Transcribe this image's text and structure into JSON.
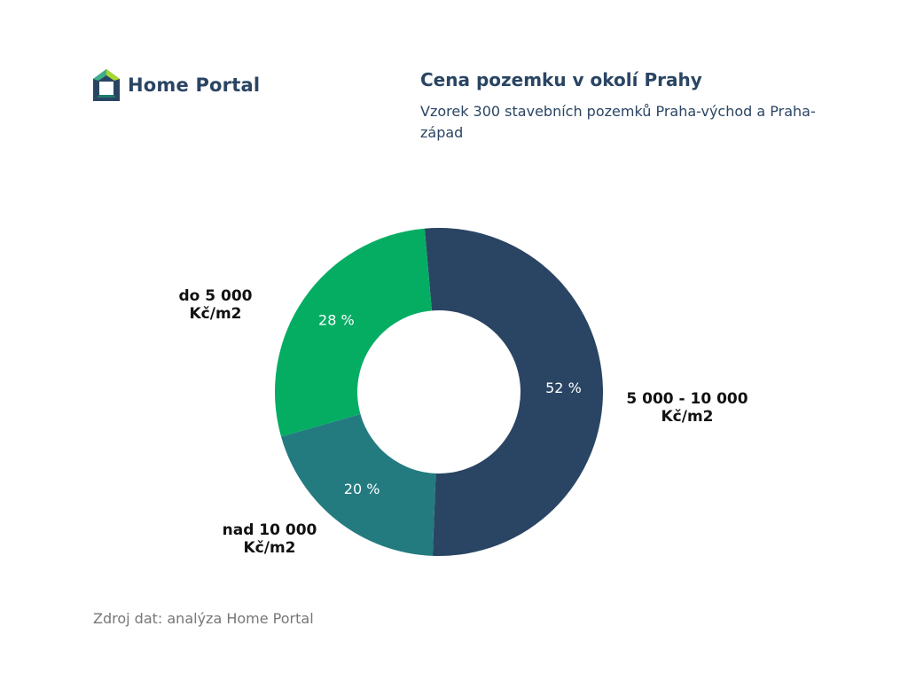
{
  "brand": {
    "name": "Home Portal",
    "logo_icon": "house-icon",
    "colors": [
      "#2a4563",
      "#3fae8a",
      "#a7d82d",
      "#1f7a6c"
    ]
  },
  "chart_data": {
    "type": "pie",
    "title": "Cena pozemku v okolí Prahy",
    "subtitle": "Vzorek 300 stavebních pozemků Praha-východ a Praha-západ",
    "slices": [
      {
        "category_line1": "5 000 - 10 000",
        "category_line2": "Kč/m2",
        "value": 52,
        "value_label": "52 %",
        "color": "#2a4563"
      },
      {
        "category_line1": "nad 10 000",
        "category_line2": "Kč/m2",
        "value": 20,
        "value_label": "20 %",
        "color": "#237b80"
      },
      {
        "category_line1": "do 5 000",
        "category_line2": "Kč/m2",
        "value": 28,
        "value_label": "28 %",
        "color": "#05ad63"
      }
    ],
    "legend": "none"
  },
  "footer": {
    "source": "Zdroj dat: analýza Home Portal"
  }
}
